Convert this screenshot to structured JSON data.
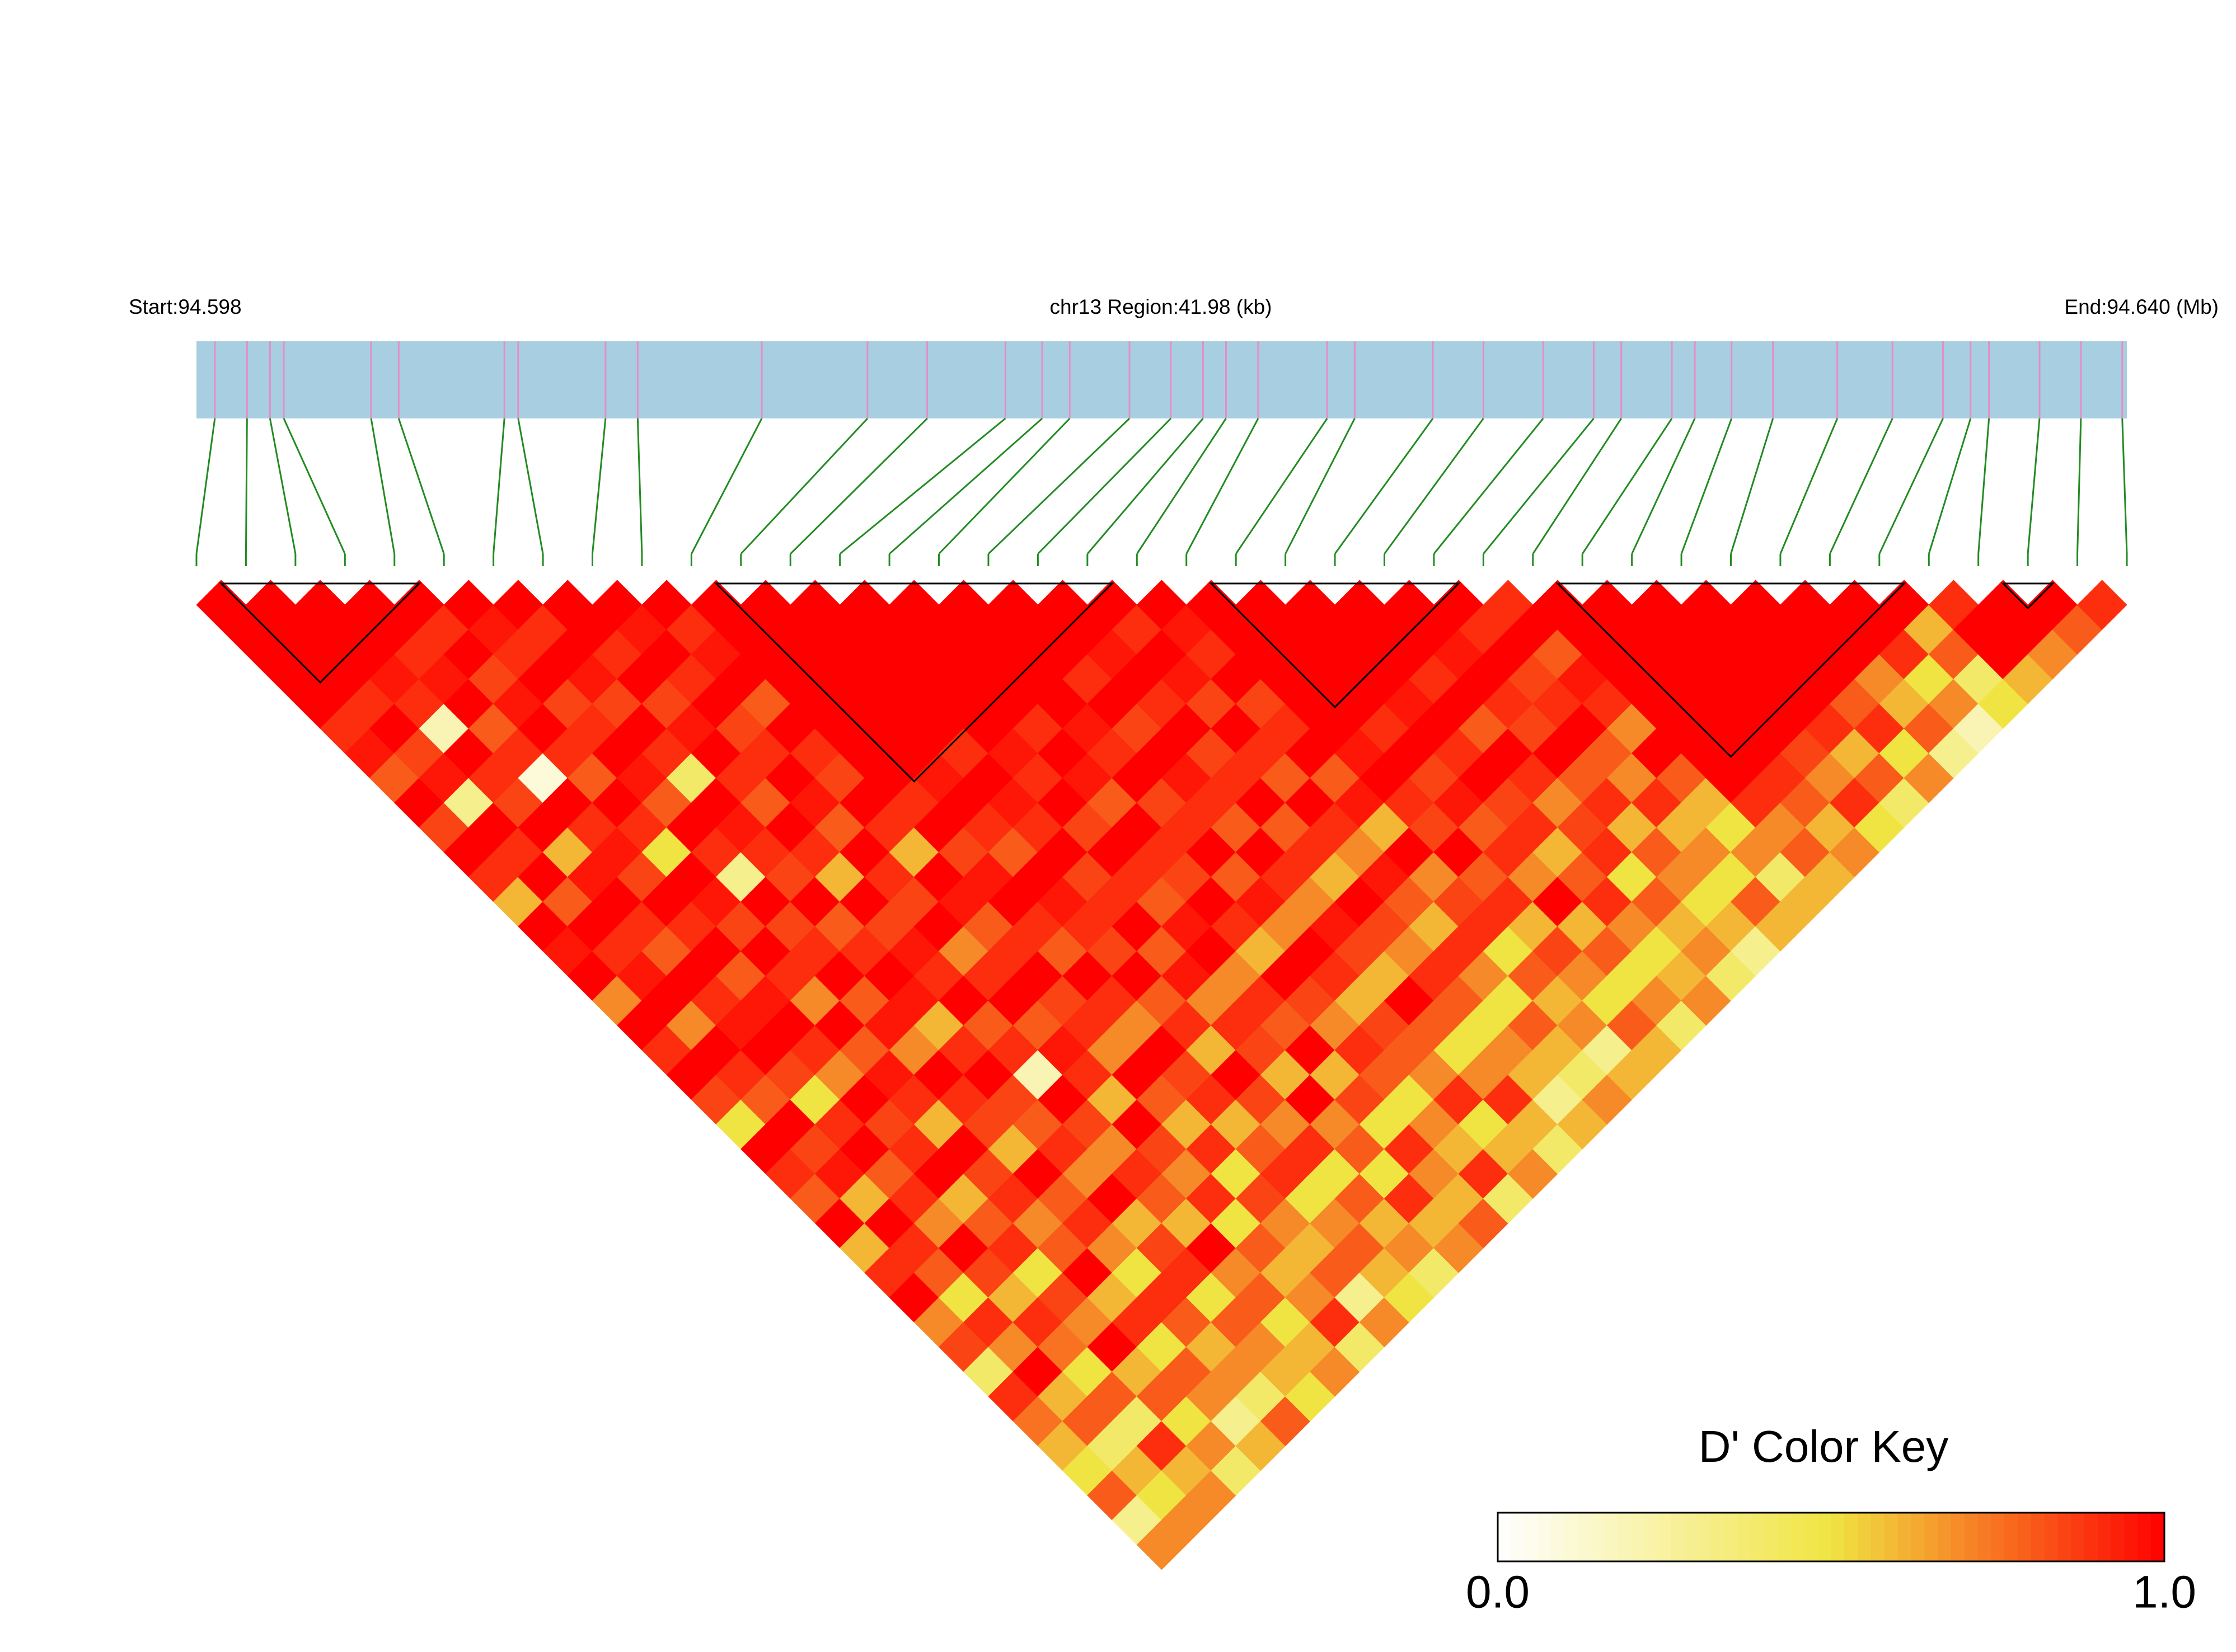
{
  "chart_data": {
    "type": "ld-heatmap",
    "start_label": "Start:94.598",
    "region_label": "chr13 Region:41.98 (kb)",
    "end_label": "End:94.640 (Mb)",
    "key_title": "D' Color Key",
    "xlim": [
      94.598,
      94.64
    ],
    "snp_positions": [
      94.5984,
      94.5991,
      94.5996,
      94.5999,
      94.6018,
      94.6024,
      94.6047,
      94.605,
      94.6069,
      94.6076,
      94.6103,
      94.6126,
      94.6139,
      94.6156,
      94.6164,
      94.617,
      94.6183,
      94.6192,
      94.6199,
      94.6204,
      94.6211,
      94.6226,
      94.6232,
      94.6249,
      94.626,
      94.6273,
      94.6284,
      94.629,
      94.6301,
      94.6306,
      94.6314,
      94.6323,
      94.6337,
      94.6349,
      94.636,
      94.6366,
      94.637,
      94.6381,
      94.639,
      94.6399
    ],
    "dprime": [
      [
        1,
        1,
        1,
        1,
        1,
        0.9,
        0.95,
        0.8,
        1,
        0.85,
        1,
        0.9,
        0.6,
        1,
        0.95,
        1,
        0.7,
        1,
        0.9,
        1,
        0.85,
        0.5,
        1,
        0.9,
        0.8,
        1,
        0.6,
        0.9,
        1,
        0.7,
        0.85,
        0.4,
        0.9,
        0.75,
        0.6,
        0.5,
        0.8,
        0.3,
        0.7
      ],
      [
        1,
        1,
        1,
        1,
        0.9,
        1,
        0.85,
        0.95,
        0.3,
        1,
        0.9,
        1,
        0.8,
        1,
        0.9,
        0.95,
        1,
        0.7,
        1,
        0.9,
        0.8,
        1,
        0.85,
        0.95,
        0.6,
        1,
        0.9,
        0.8,
        0.5,
        0.9,
        0.7,
        1,
        0.6,
        0.8,
        0.4,
        0.6,
        0.5,
        0.7
      ],
      [
        1,
        1,
        1,
        0.95,
        0.9,
        0.2,
        1,
        0.9,
        0.85,
        1,
        0.6,
        0.95,
        1,
        0.9,
        0.8,
        1,
        0.9,
        0.95,
        1,
        0.85,
        0.5,
        0.9,
        1,
        0.8,
        0.9,
        0.7,
        1,
        0.85,
        0.6,
        0.9,
        0.75,
        0.5,
        0.8,
        0.4,
        0.9,
        0.6,
        0.7
      ],
      [
        1,
        1,
        0.9,
        0.95,
        1,
        0.8,
        0.9,
        0.1,
        1,
        0.9,
        0.95,
        0.85,
        1,
        0.9,
        1,
        0.8,
        0.95,
        1,
        0.9,
        0.7,
        1,
        0.85,
        0.9,
        1,
        0.6,
        0.8,
        0.9,
        0.5,
        0.85,
        0.7,
        1,
        0.6,
        0.8,
        0.5,
        0.7,
        0.4
      ],
      [
        1,
        0.9,
        1,
        0.85,
        0.95,
        1,
        0.9,
        0.8,
        1,
        0.9,
        0.5,
        1,
        0.95,
        0.85,
        1,
        0.9,
        0.7,
        1,
        0.8,
        0.95,
        0.9,
        0.6,
        1,
        0.85,
        0.9,
        0.7,
        0.8,
        1,
        0.6,
        0.9,
        0.5,
        0.8,
        0.7,
        0.3,
        0.6
      ],
      [
        1,
        0.95,
        0.9,
        1,
        0.85,
        0.9,
        1,
        0.95,
        0.8,
        1,
        0.9,
        0.3,
        1,
        0.85,
        0.9,
        1,
        0.8,
        0.95,
        0.7,
        1,
        0.9,
        0.85,
        0.6,
        1,
        0.8,
        0.9,
        0.7,
        0.5,
        0.9,
        0.8,
        0.6,
        0.7,
        0.4,
        0.8
      ],
      [
        1,
        0.9,
        1,
        0.95,
        0.85,
        1,
        0.9,
        0.4,
        1,
        0.95,
        0.9,
        0.85,
        1,
        0.8,
        0.9,
        1,
        0.95,
        0.6,
        0.9,
        1,
        0.85,
        0.8,
        0.9,
        0.7,
        1,
        0.6,
        0.85,
        0.9,
        0.5,
        0.8,
        0.7,
        0.6,
        0.5
      ],
      [
        1,
        1,
        0.9,
        1,
        0.85,
        0.95,
        1,
        0.9,
        0.8,
        1,
        0.9,
        0.6,
        1,
        0.85,
        0.95,
        0.9,
        1,
        0.8,
        0.9,
        0.2,
        1,
        0.85,
        0.7,
        0.9,
        0.8,
        0.6,
        1,
        0.7,
        0.8,
        0.5,
        0.6,
        0.7
      ],
      [
        1,
        0.95,
        1,
        0.9,
        1,
        0.85,
        0.9,
        1,
        0.95,
        0.8,
        1,
        0.9,
        0.85,
        1,
        0.7,
        0.9,
        1,
        0.8,
        0.95,
        0.9,
        0.6,
        1,
        0.85,
        0.7,
        0.9,
        0.5,
        0.8,
        0.6,
        0.7,
        0.9,
        0.4
      ],
      [
        1,
        0.9,
        0.95,
        1,
        0.8,
        1,
        0.9,
        0.85,
        1,
        0.9,
        0.6,
        1,
        0.95,
        0.8,
        0.9,
        1,
        0.85,
        0.9,
        0.7,
        1,
        0.8,
        0.6,
        0.9,
        0.5,
        0.85,
        0.7,
        0.6,
        0.8,
        0.3,
        0.7
      ],
      [
        1,
        1,
        1,
        1,
        1,
        1,
        1,
        1,
        0.9,
        1,
        0.85,
        0.95,
        1,
        0.9,
        0.8,
        1,
        0.9,
        0.7,
        1,
        0.85,
        0.9,
        0.6,
        0.8,
        0.9,
        0.5,
        0.7,
        0.8,
        0.6,
        0.5
      ],
      [
        1,
        1,
        1,
        1,
        1,
        1,
        1,
        0.95,
        1,
        0.9,
        0.8,
        1,
        0.95,
        0.9,
        0.85,
        1,
        0.8,
        0.9,
        0.6,
        1,
        0.85,
        0.7,
        0.9,
        0.5,
        0.8,
        0.6,
        0.7,
        0.4
      ],
      [
        1,
        1,
        1,
        1,
        1,
        1,
        0.9,
        1,
        0.95,
        0.9,
        1,
        0.85,
        0.9,
        1,
        0.8,
        0.95,
        0.7,
        0.9,
        0.85,
        0.6,
        1,
        0.7,
        0.8,
        0.5,
        0.9,
        0.6,
        0.7
      ],
      [
        1,
        1,
        1,
        1,
        1,
        1,
        0.95,
        0.9,
        1,
        0.85,
        1,
        0.9,
        0.8,
        0.95,
        1,
        0.7,
        0.9,
        0.8,
        1,
        0.6,
        0.85,
        0.5,
        0.9,
        0.7,
        0.6,
        0.8
      ],
      [
        1,
        1,
        1,
        1,
        1,
        0.9,
        1,
        0.95,
        0.8,
        1,
        0.9,
        0.85,
        1,
        0.9,
        0.6,
        1,
        0.85,
        0.7,
        0.9,
        0.8,
        0.5,
        0.7,
        0.6,
        0.9,
        0.4
      ],
      [
        1,
        1,
        1,
        1,
        1,
        0.95,
        0.9,
        1,
        0.85,
        0.9,
        1,
        0.8,
        0.95,
        0.7,
        1,
        0.9,
        0.6,
        0.85,
        0.8,
        0.7,
        0.9,
        0.5,
        0.6,
        0.7
      ],
      [
        1,
        1,
        1,
        0.9,
        1,
        0.85,
        1,
        0.95,
        0.9,
        0.8,
        1,
        0.9,
        0.7,
        0.95,
        0.85,
        0.6,
        1,
        0.8,
        0.5,
        0.7,
        0.9,
        0.6,
        0.4
      ],
      [
        1,
        1,
        0.95,
        1,
        0.9,
        1,
        0.85,
        0.9,
        1,
        0.8,
        0.9,
        0.6,
        1,
        0.85,
        0.7,
        0.9,
        0.8,
        0.5,
        0.7,
        0.6,
        0.3,
        0.6
      ],
      [
        1,
        0.9,
        1,
        0.95,
        0.85,
        1,
        0.9,
        0.8,
        1,
        0.9,
        0.7,
        0.95,
        0.8,
        0.6,
        0.9,
        0.7,
        0.5,
        0.8,
        0.6,
        0.4,
        0.7
      ],
      [
        1,
        0.95,
        0.9,
        1,
        0.85,
        0.9,
        1,
        0.8,
        0.95,
        0.6,
        1,
        0.7,
        0.85,
        0.9,
        0.5,
        0.8,
        0.6,
        0.7,
        0.3,
        0.6
      ],
      [
        1,
        1,
        1,
        1,
        1,
        1,
        0.95,
        1,
        0.9,
        0.85,
        1,
        0.8,
        0.9,
        0.6,
        0.85,
        0.7,
        0.5,
        0.8,
        0.6
      ],
      [
        1,
        1,
        1,
        1,
        1,
        0.9,
        1,
        0.85,
        0.95,
        0.8,
        0.9,
        0.7,
        1,
        0.6,
        0.8,
        0.5,
        0.7,
        0.4
      ],
      [
        1,
        1,
        1,
        1,
        0.95,
        1,
        0.9,
        1,
        0.85,
        0.9,
        0.6,
        0.8,
        0.9,
        0.7,
        0.5,
        0.6,
        0.7
      ],
      [
        1,
        1,
        1,
        0.9,
        1,
        0.8,
        1,
        0.9,
        0.7,
        0.85,
        0.9,
        0.5,
        0.8,
        0.6,
        0.7,
        0.4
      ],
      [
        1,
        1,
        0.95,
        1,
        0.9,
        0.85,
        1,
        0.8,
        0.9,
        0.6,
        0.8,
        0.7,
        0.5,
        0.6,
        0.3
      ],
      [
        1,
        0.9,
        1,
        0.85,
        0.9,
        1,
        0.8,
        0.7,
        0.9,
        0.6,
        0.7,
        0.5,
        0.8,
        0.6
      ],
      [
        0.9,
        1,
        0.8,
        0.95,
        0.9,
        0.7,
        1,
        0.8,
        0.6,
        0.5,
        0.7,
        0.4,
        0.6
      ],
      [
        1,
        1,
        1,
        1,
        1,
        1,
        1,
        1,
        0.9,
        0.7,
        0.8,
        0.6
      ],
      [
        1,
        1,
        1,
        1,
        1,
        1,
        1,
        0.9,
        0.8,
        0.6,
        0.7
      ],
      [
        1,
        1,
        1,
        1,
        1,
        1,
        0.85,
        0.7,
        0.9,
        0.5
      ],
      [
        1,
        1,
        1,
        1,
        1,
        0.9,
        0.6,
        0.8,
        0.4
      ],
      [
        1,
        1,
        1,
        1,
        0.8,
        0.9,
        0.5,
        0.7
      ],
      [
        1,
        1,
        1,
        0.7,
        0.6,
        0.8,
        0.3
      ],
      [
        1,
        1,
        0.9,
        0.5,
        0.7,
        0.2
      ],
      [
        1,
        0.6,
        0.8,
        0.4,
        0.5
      ],
      [
        0.9,
        1,
        1,
        0.6
      ],
      [
        1,
        1,
        0.7
      ],
      [
        1,
        0.8
      ],
      [
        0.9
      ]
    ],
    "blocks": [
      [
        0,
        5
      ],
      [
        10,
        19
      ],
      [
        20,
        26
      ],
      [
        27,
        35
      ],
      [
        36,
        38
      ]
    ],
    "color_stops": [
      "#ffffff",
      "#f0e442",
      "#ff0000"
    ],
    "key_ticks": [
      {
        "value": 0,
        "label": "0.0"
      },
      {
        "value": 1,
        "label": "1.0"
      }
    ],
    "bar_color": "#a8cfe1",
    "snp_color": "#e58ec6",
    "link_color": "#228b22"
  }
}
